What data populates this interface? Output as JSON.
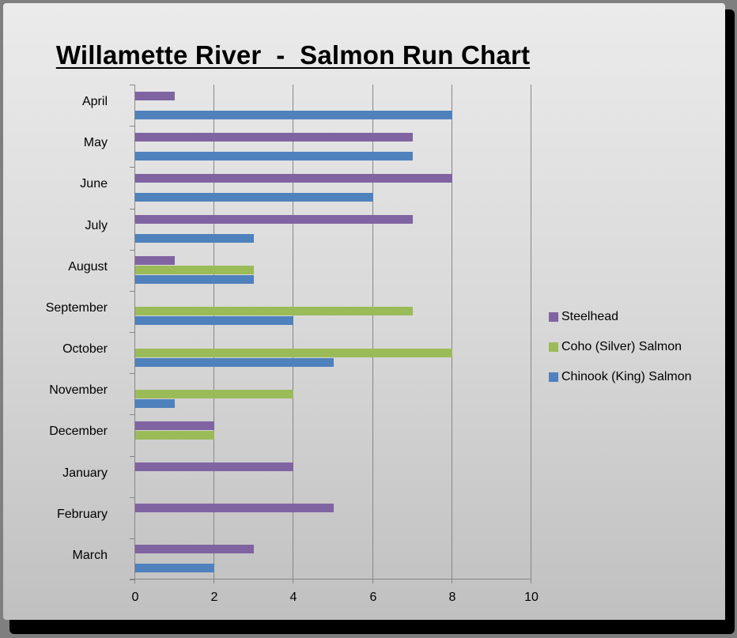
{
  "chart_data": {
    "type": "bar",
    "orientation": "horizontal",
    "title": "Willamette River  -  Salmon Run Chart",
    "xlabel": "",
    "ylabel": "",
    "xlim": [
      0,
      10
    ],
    "x_ticks": [
      "0",
      "2",
      "4",
      "6",
      "8",
      "10"
    ],
    "grid": true,
    "legend_position": "right",
    "categories": [
      "April",
      "May",
      "June",
      "July",
      "August",
      "September",
      "October",
      "November",
      "December",
      "January",
      "February",
      "March"
    ],
    "series": [
      {
        "name": "Steelhead",
        "color": "#8064a2",
        "values": [
          1,
          7,
          8,
          7,
          1,
          0,
          0,
          0,
          2,
          4,
          5,
          3
        ]
      },
      {
        "name": "Coho (Silver) Salmon",
        "color": "#9bbb59",
        "values": [
          0,
          0,
          0,
          0,
          3,
          7,
          8,
          4,
          2,
          0,
          0,
          0
        ]
      },
      {
        "name": "Chinook (King) Salmon",
        "color": "#4f81bd",
        "values": [
          8,
          7,
          6,
          3,
          3,
          4,
          5,
          1,
          0,
          0,
          0,
          2
        ]
      }
    ]
  },
  "legend": {
    "items": [
      {
        "label": "Steelhead",
        "color": "#8064a2"
      },
      {
        "label": "Coho (Silver) Salmon",
        "color": "#9bbb59"
      },
      {
        "label": "Chinook (King) Salmon",
        "color": "#4f81bd"
      }
    ]
  }
}
